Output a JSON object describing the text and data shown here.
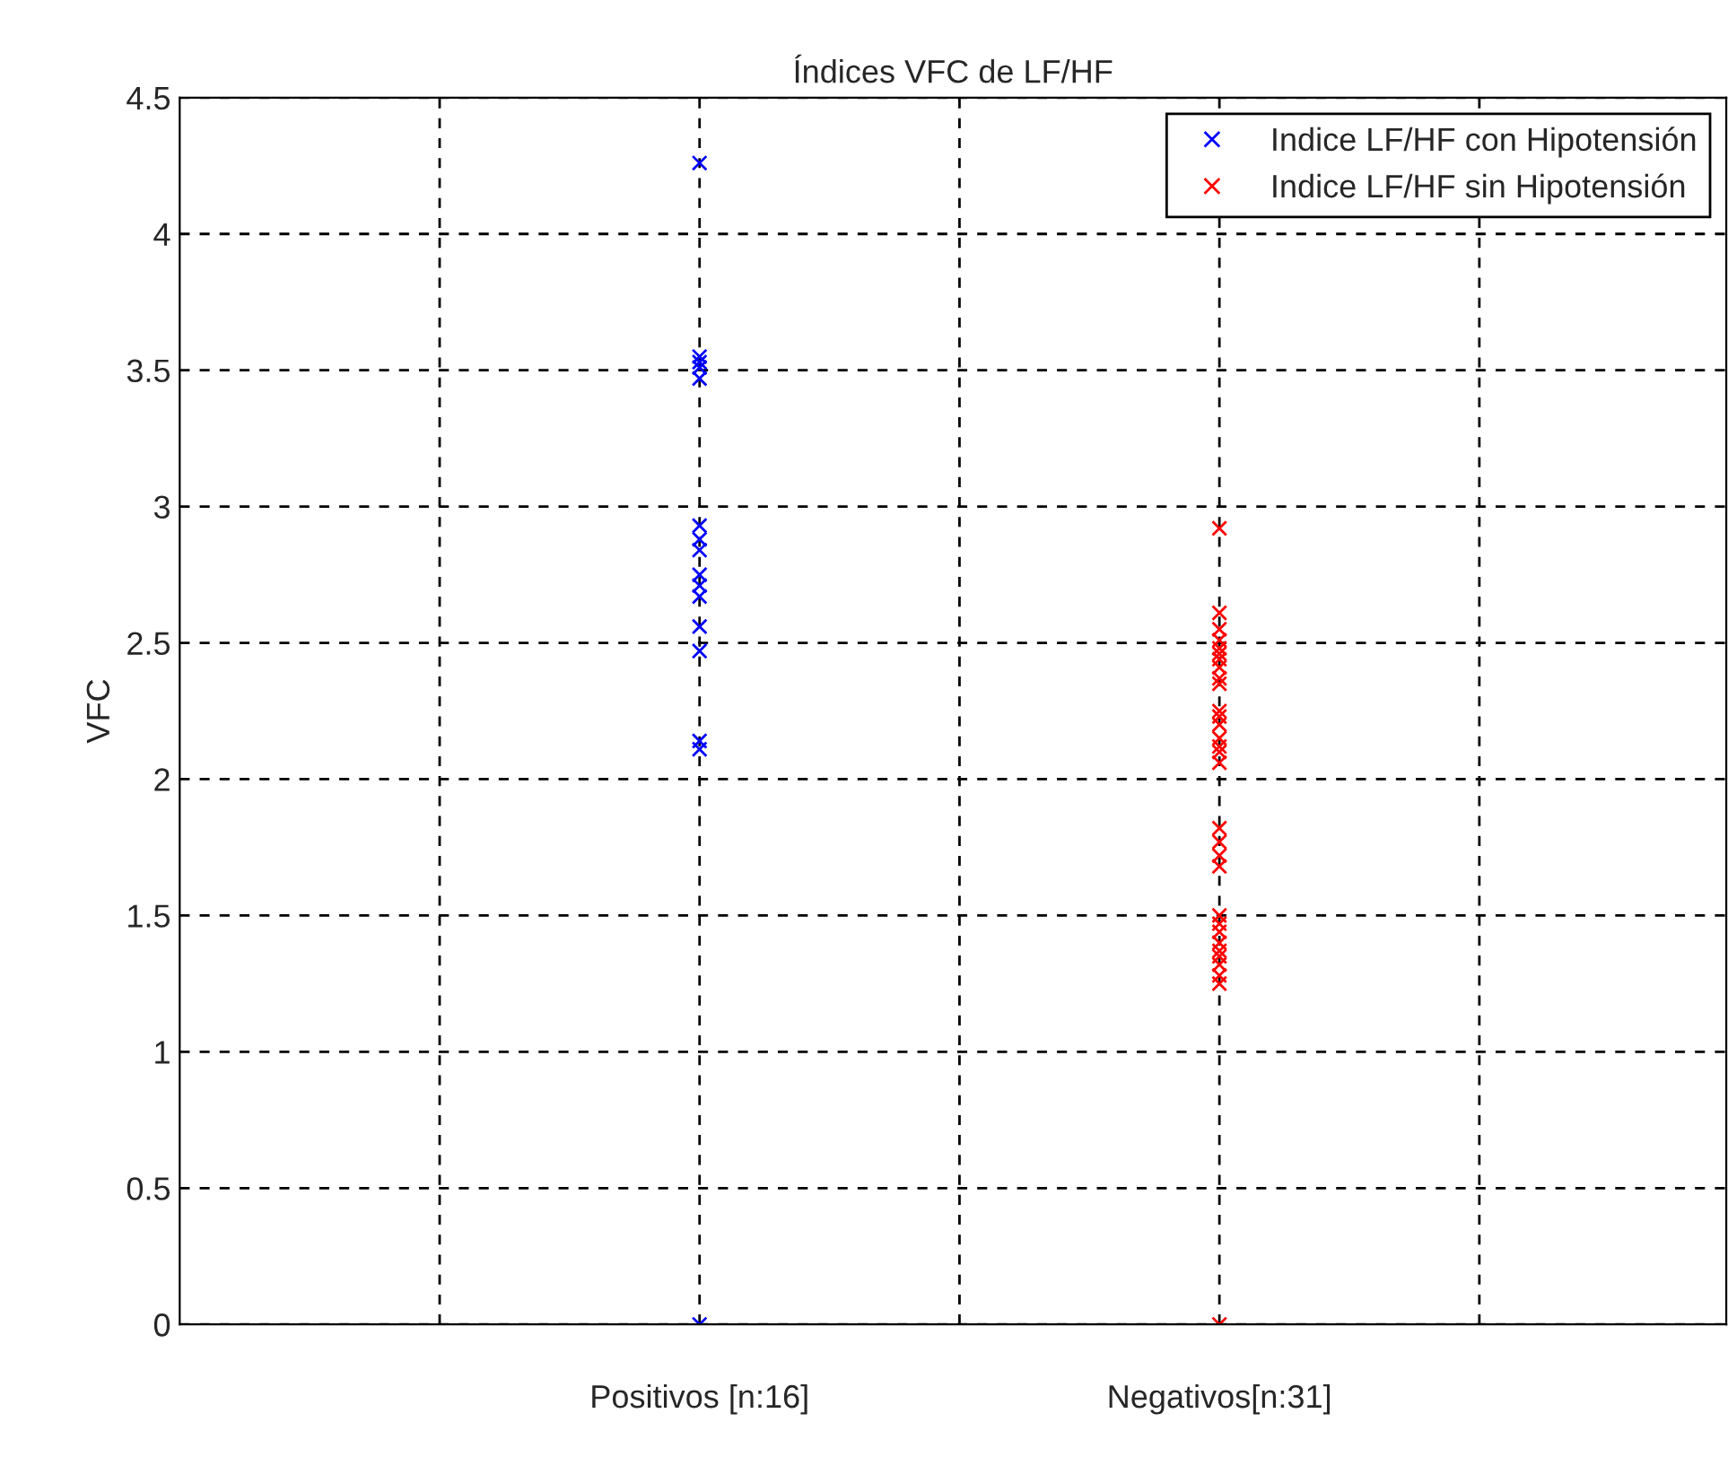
{
  "chart_data": {
    "type": "scatter",
    "title": "Índices VFC de LF/HF",
    "ylabel": "VFC",
    "categories": [
      null,
      "Positivos [n:16]",
      null,
      "Negativos[n:31]",
      null
    ],
    "series": [
      {
        "name": "Indice LF/HF con Hipotensión",
        "color": "#0000ff",
        "x": [
          "Positivos [n:16]",
          "Positivos [n:16]",
          "Positivos [n:16]",
          "Positivos [n:16]",
          "Positivos [n:16]",
          "Positivos [n:16]",
          "Positivos [n:16]",
          "Positivos [n:16]",
          "Positivos [n:16]",
          "Positivos [n:16]",
          "Positivos [n:16]",
          "Positivos [n:16]",
          "Positivos [n:16]",
          "Positivos [n:16]",
          "Positivos [n:16]",
          "Positivos [n:16]"
        ],
        "values": [
          4.26,
          3.55,
          3.53,
          3.51,
          3.47,
          2.93,
          2.88,
          2.84,
          2.75,
          2.71,
          2.67,
          2.56,
          2.47,
          2.14,
          2.11,
          0
        ]
      },
      {
        "name": "Indice LF/HF sin Hipotensión",
        "color": "#ff0000",
        "x": [
          "Negativos[n:31]",
          "Negativos[n:31]",
          "Negativos[n:31]",
          "Negativos[n:31]",
          "Negativos[n:31]",
          "Negativos[n:31]",
          "Negativos[n:31]",
          "Negativos[n:31]",
          "Negativos[n:31]",
          "Negativos[n:31]",
          "Negativos[n:31]",
          "Negativos[n:31]",
          "Negativos[n:31]",
          "Negativos[n:31]",
          "Negativos[n:31]",
          "Negativos[n:31]",
          "Negativos[n:31]",
          "Negativos[n:31]",
          "Negativos[n:31]",
          "Negativos[n:31]",
          "Negativos[n:31]",
          "Negativos[n:31]",
          "Negativos[n:31]",
          "Negativos[n:31]",
          "Negativos[n:31]",
          "Negativos[n:31]",
          "Negativos[n:31]",
          "Negativos[n:31]",
          "Negativos[n:31]",
          "Negativos[n:31]",
          "Negativos[n:31]"
        ],
        "values": [
          2.92,
          2.61,
          2.55,
          2.51,
          2.48,
          2.46,
          2.44,
          2.41,
          2.37,
          2.35,
          2.25,
          2.23,
          2.2,
          2.15,
          2.12,
          2.1,
          2.06,
          1.82,
          1.77,
          1.72,
          1.68,
          1.5,
          1.47,
          1.44,
          1.4,
          1.37,
          1.35,
          1.32,
          1.28,
          1.25,
          0
        ]
      }
    ],
    "ylim": [
      0,
      4.5
    ],
    "yticks": [
      0,
      0.5,
      1,
      1.5,
      2,
      2.5,
      3,
      3.5,
      4,
      4.5
    ],
    "grid": true,
    "legend": "top right",
    "marker": "cross"
  }
}
